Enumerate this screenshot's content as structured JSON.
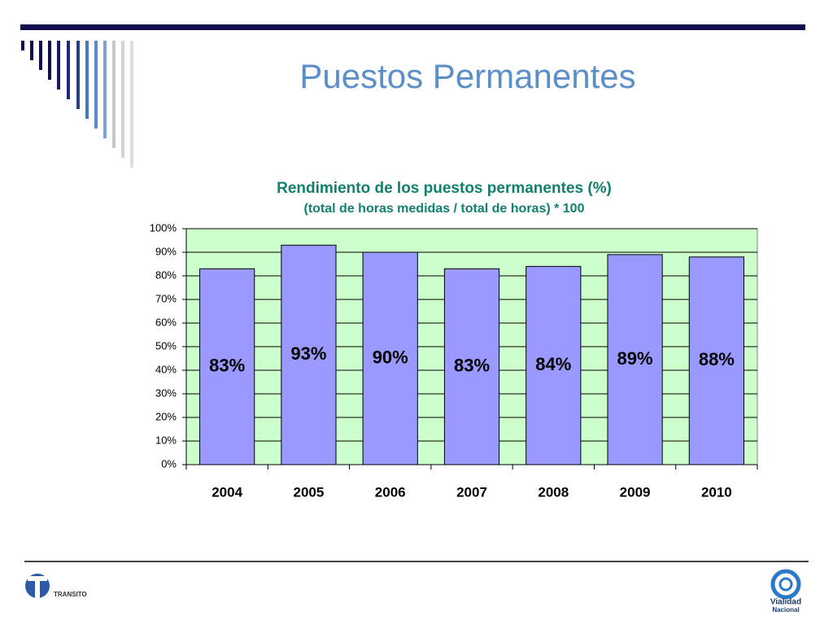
{
  "slide_title": "Puestos Permanentes",
  "chart_data": {
    "type": "bar",
    "title": "Rendimiento de los puestos permanentes (%)",
    "subtitle": "(total de horas medidas / total de horas) * 100",
    "categories": [
      "2004",
      "2005",
      "2006",
      "2007",
      "2008",
      "2009",
      "2010"
    ],
    "values": [
      83,
      93,
      90,
      83,
      84,
      89,
      88
    ],
    "value_labels": [
      "83%",
      "93%",
      "90%",
      "83%",
      "84%",
      "89%",
      "88%"
    ],
    "color": "#9999ff",
    "plot_background": "#ccffcc",
    "ylim": [
      0,
      100
    ],
    "yticks": [
      {
        "value": 0,
        "label": "0%"
      },
      {
        "value": 10,
        "label": "10%"
      },
      {
        "value": 20,
        "label": "20%"
      },
      {
        "value": 30,
        "label": "30%"
      },
      {
        "value": 40,
        "label": "40%"
      },
      {
        "value": 50,
        "label": "50%"
      },
      {
        "value": 60,
        "label": "60%"
      },
      {
        "value": 70,
        "label": "70%"
      },
      {
        "value": 80,
        "label": "80%"
      },
      {
        "value": 90,
        "label": "90%"
      },
      {
        "value": 100,
        "label": "100%"
      }
    ],
    "grid": true
  },
  "logos": {
    "left": "TRANSITO",
    "right_top": "Vialidad",
    "right_bottom": "Nacional"
  }
}
